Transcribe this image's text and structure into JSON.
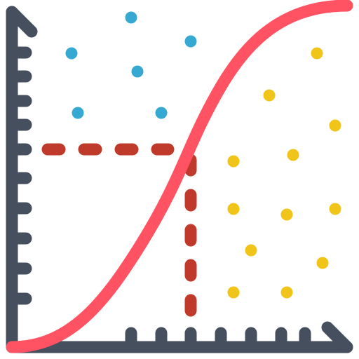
{
  "icon": {
    "name": "s-curve-classification-chart-icon",
    "colors": {
      "axis": "#464F5D",
      "curve": "#FF5364",
      "guide": "#C03A2B",
      "class_a": "#35A9D1",
      "class_b": "#F0C419",
      "background": "#FFFFFF"
    },
    "class_a_dot_count": 6,
    "class_b_dot_count": 12
  }
}
